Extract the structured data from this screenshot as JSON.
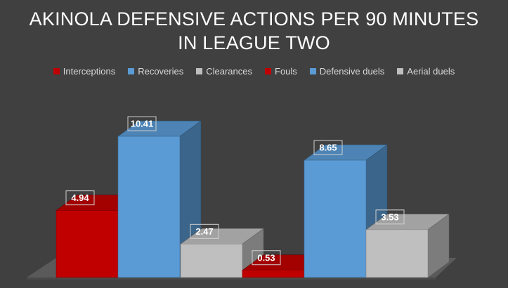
{
  "chart_data": {
    "type": "bar",
    "title_lines": [
      "AKINOLA DEFENSIVE ACTIONS PER 90 MINUTES",
      "IN LEAGUE TWO"
    ],
    "categories": [
      "Interceptions",
      "Recoveries",
      "Clearances",
      "Fouls",
      "Defensive duels",
      "Aerial duels"
    ],
    "values": [
      4.94,
      10.41,
      2.47,
      0.53,
      8.65,
      3.53
    ],
    "value_labels": [
      "4.94",
      "10.41",
      "2.47",
      "0.53",
      "8.65",
      "3.53"
    ],
    "colors": [
      "#c00000",
      "#5b9bd5",
      "#bfbfbf",
      "#c00000",
      "#5b9bd5",
      "#bfbfbf"
    ],
    "legend_position": "top",
    "style": "3d-clustered-column",
    "grid": false
  }
}
